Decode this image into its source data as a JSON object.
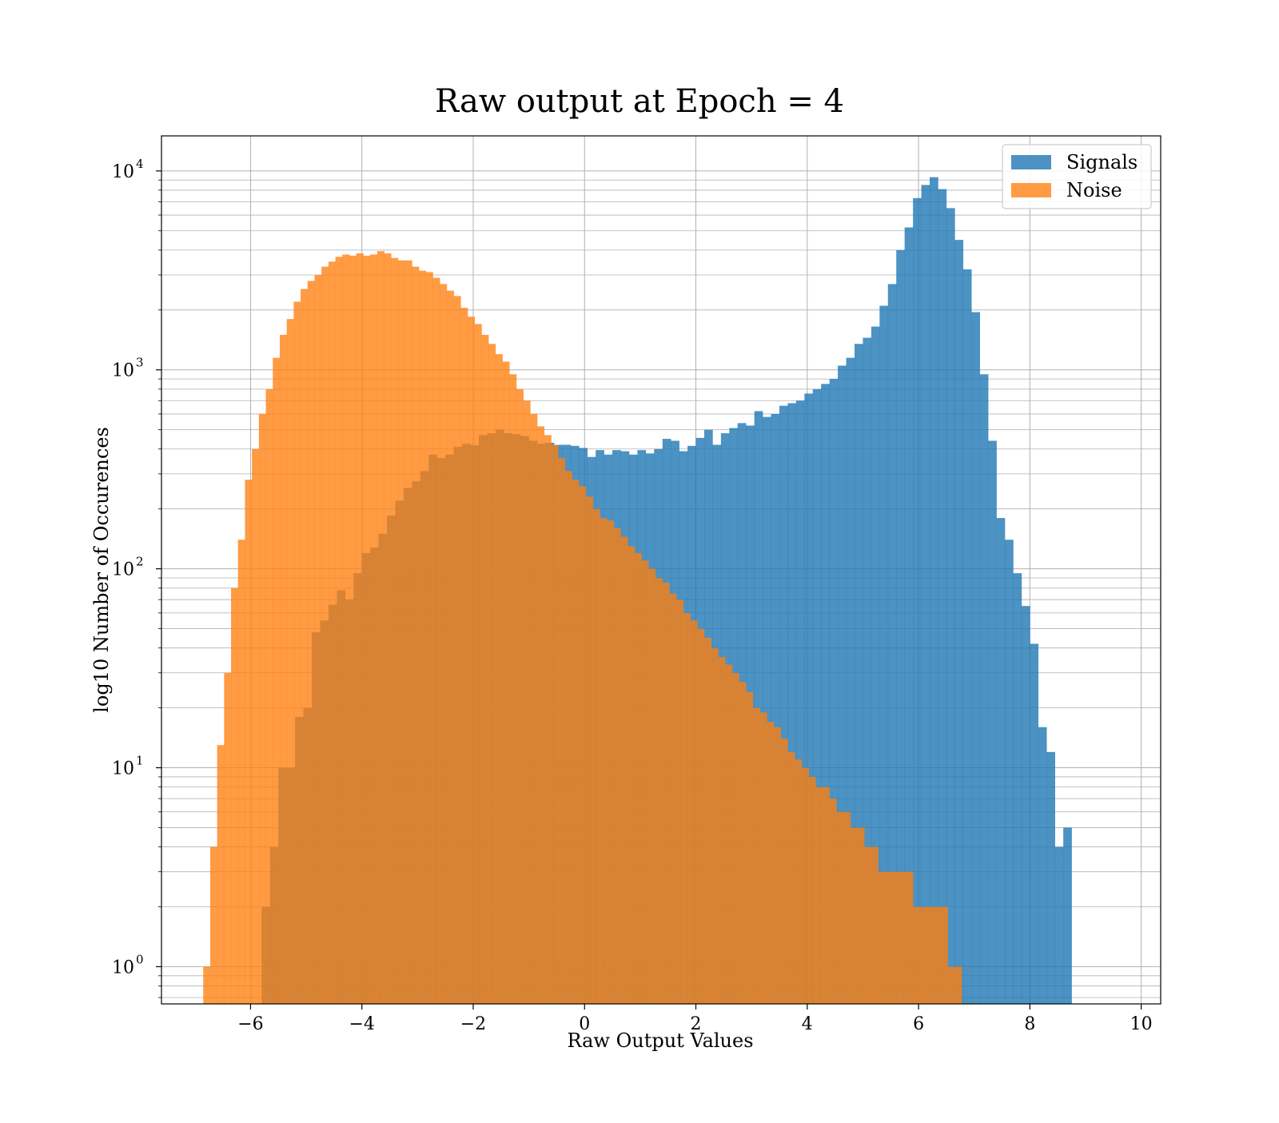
{
  "chart_data": {
    "type": "bar",
    "title": "Raw output at Epoch = 4",
    "xlabel": "Raw Output Values",
    "ylabel": "log10 Number of Occurences",
    "yscale": "log",
    "xlim": [
      -7.6,
      10.35
    ],
    "ylim": [
      0.65,
      15000
    ],
    "grid": true,
    "legend": {
      "position": "top-right",
      "entries": [
        "Signals",
        "Noise"
      ]
    },
    "x_ticks": [
      -6,
      -4,
      -2,
      0,
      2,
      4,
      6,
      8,
      10
    ],
    "x_tick_labels": [
      "−6",
      "−4",
      "−2",
      "0",
      "2",
      "4",
      "6",
      "8",
      "10"
    ],
    "y_ticks": [
      {
        "value": 1,
        "base": "10",
        "exp": "0"
      },
      {
        "value": 10,
        "base": "10",
        "exp": "1"
      },
      {
        "value": 100,
        "base": "10",
        "exp": "2"
      },
      {
        "value": 1000,
        "base": "10",
        "exp": "3"
      },
      {
        "value": 10000,
        "base": "10",
        "exp": "4"
      }
    ],
    "series": [
      {
        "name": "Signals",
        "color": "#1f77b4",
        "bin_start": -5.8,
        "bin_width": 0.15,
        "values": [
          2,
          4,
          10,
          10,
          18,
          20,
          48,
          55,
          66,
          78,
          70,
          95,
          120,
          128,
          150,
          185,
          220,
          255,
          275,
          310,
          375,
          360,
          375,
          410,
          425,
          418,
          470,
          480,
          500,
          480,
          475,
          465,
          440,
          425,
          430,
          420,
          420,
          415,
          405,
          365,
          395,
          375,
          395,
          390,
          375,
          395,
          380,
          400,
          450,
          440,
          390,
          415,
          455,
          500,
          420,
          480,
          510,
          540,
          525,
          620,
          580,
          600,
          660,
          680,
          700,
          760,
          800,
          850,
          900,
          1050,
          1150,
          1350,
          1450,
          1650,
          2100,
          2700,
          4000,
          5200,
          7300,
          8500,
          9300,
          8100,
          6500,
          4500,
          3200,
          1950,
          950,
          440,
          180,
          140,
          95,
          65,
          42,
          16,
          12,
          4,
          5
        ]
      },
      {
        "name": "Noise",
        "color": "#ff7f0e",
        "bin_start": -6.85,
        "bin_width": 0.125,
        "values": [
          1,
          4,
          13,
          30,
          80,
          140,
          280,
          400,
          600,
          800,
          1150,
          1500,
          1800,
          2200,
          2550,
          2800,
          3000,
          3300,
          3500,
          3700,
          3800,
          3750,
          3850,
          3750,
          3800,
          3950,
          3850,
          3650,
          3550,
          3550,
          3300,
          3150,
          3100,
          2900,
          2700,
          2500,
          2350,
          2050,
          1850,
          1700,
          1500,
          1350,
          1200,
          1100,
          950,
          800,
          700,
          600,
          520,
          470,
          420,
          360,
          310,
          280,
          260,
          230,
          200,
          180,
          175,
          160,
          145,
          130,
          120,
          110,
          100,
          90,
          85,
          75,
          70,
          60,
          55,
          50,
          45,
          40,
          36,
          33,
          30,
          27,
          24,
          20,
          19,
          17,
          16,
          14,
          12,
          11,
          10,
          9,
          8,
          8,
          7,
          6,
          6,
          5,
          5,
          4,
          4,
          3,
          3,
          3,
          3,
          3,
          2,
          2,
          2,
          2,
          2,
          1,
          1
        ]
      }
    ]
  }
}
